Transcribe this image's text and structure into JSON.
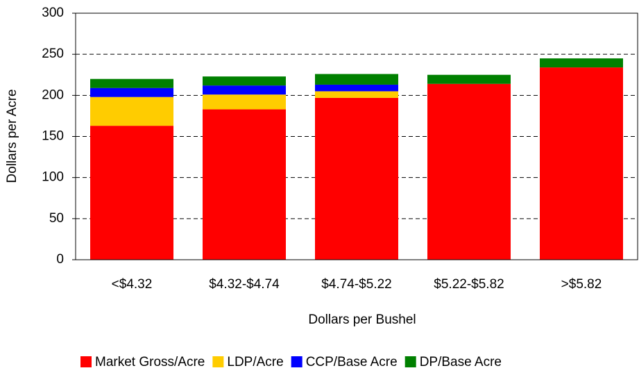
{
  "chart_data": {
    "type": "stacked_bar",
    "xlabel": "Dollars per Bushel",
    "ylabel": "Dollars per Acre",
    "categories": [
      "<$4.32",
      "$4.32-$4.74",
      "$4.74-$5.22",
      "$5.22-$5.82",
      ">$5.82"
    ],
    "series": [
      {
        "name": "Market Gross/Acre",
        "color": "#ff0000",
        "values": [
          163,
          183,
          197,
          214,
          234
        ]
      },
      {
        "name": "LDP/Acre",
        "color": "#ffcc00",
        "values": [
          35,
          18,
          8,
          0,
          0
        ]
      },
      {
        "name": "CCP/Base Acre",
        "color": "#0000ff",
        "values": [
          11,
          11,
          8,
          0,
          0
        ]
      },
      {
        "name": "DP/Base Acre",
        "color": "#008000",
        "values": [
          11,
          11,
          13,
          11,
          11
        ]
      }
    ],
    "ylim": [
      0,
      300
    ],
    "yticks": [
      0,
      50,
      100,
      150,
      200,
      250,
      300
    ],
    "grid": true
  }
}
